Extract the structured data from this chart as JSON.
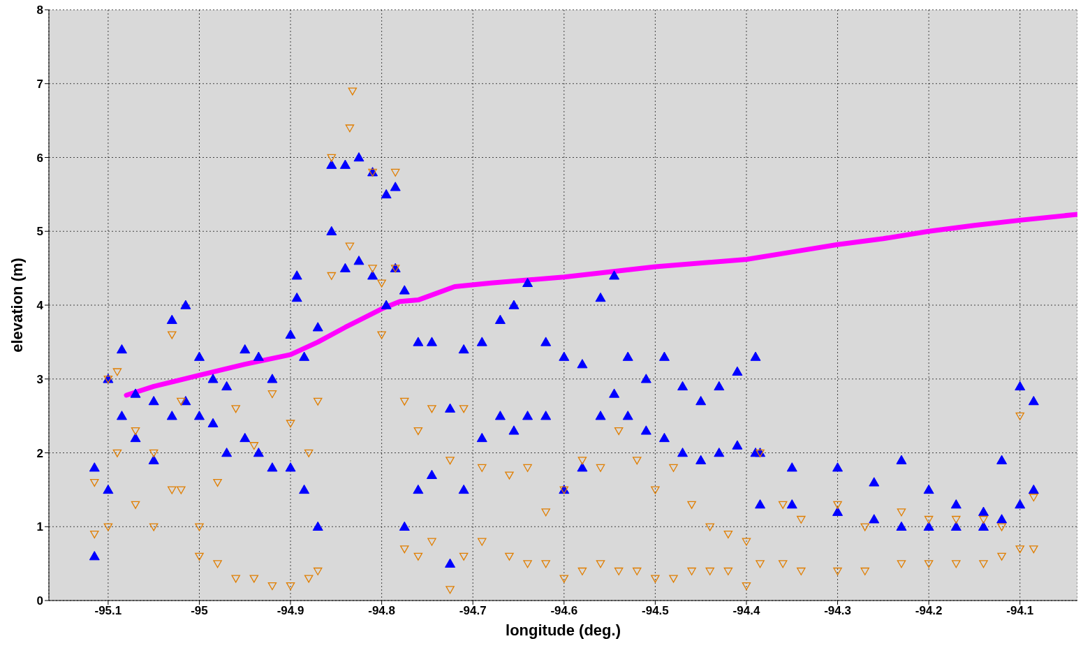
{
  "chart_data": {
    "type": "scatter",
    "xlabel": "longitude (deg.)",
    "ylabel": "elevation (m)",
    "xlim": [
      -95.165,
      -94.037
    ],
    "ylim": [
      0,
      8
    ],
    "xticks": [
      -95.1,
      -95,
      -94.9,
      -94.8,
      -94.7,
      -94.6,
      -94.5,
      -94.4,
      -94.3,
      -94.2,
      -94.1
    ],
    "yticks": [
      0,
      1,
      2,
      3,
      4,
      5,
      6,
      7,
      8
    ],
    "grid": true,
    "legend": false,
    "series": [
      {
        "marker": "triangle",
        "color": "#0000ff",
        "x": [
          -95.115,
          -95.115,
          -95.1,
          -95.1,
          -95.085,
          -95.085,
          -95.07,
          -95.07,
          -95.05,
          -95.05,
          -95.03,
          -95.03,
          -95.015,
          -95.015,
          -95.0,
          -95.0,
          -94.985,
          -94.985,
          -94.97,
          -94.97,
          -94.95,
          -94.95,
          -94.935,
          -94.935,
          -94.92,
          -94.92,
          -94.9,
          -94.9,
          -94.893,
          -94.893,
          -94.885,
          -94.885,
          -94.87,
          -94.87,
          -94.855,
          -94.855,
          -94.84,
          -94.84,
          -94.825,
          -94.825,
          -94.81,
          -94.81,
          -94.795,
          -94.795,
          -94.785,
          -94.785,
          -94.775,
          -94.775,
          -94.76,
          -94.76,
          -94.745,
          -94.745,
          -94.725,
          -94.725,
          -94.71,
          -94.71,
          -94.69,
          -94.69,
          -94.67,
          -94.67,
          -94.655,
          -94.655,
          -94.64,
          -94.64,
          -94.62,
          -94.62,
          -94.6,
          -94.6,
          -94.58,
          -94.58,
          -94.56,
          -94.56,
          -94.545,
          -94.545,
          -94.53,
          -94.53,
          -94.51,
          -94.51,
          -94.49,
          -94.49,
          -94.47,
          -94.47,
          -94.45,
          -94.45,
          -94.43,
          -94.43,
          -94.41,
          -94.41,
          -94.39,
          -94.39,
          -94.385,
          -94.385,
          -94.35,
          -94.35,
          -94.3,
          -94.3,
          -94.26,
          -94.26,
          -94.23,
          -94.23,
          -94.2,
          -94.2,
          -94.17,
          -94.17,
          -94.14,
          -94.14,
          -94.12,
          -94.12,
          -94.1,
          -94.1,
          -94.085,
          -94.085
        ],
        "values": [
          0.6,
          1.8,
          1.5,
          3.0,
          2.5,
          3.4,
          2.2,
          2.8,
          1.9,
          2.7,
          2.5,
          3.8,
          2.7,
          4.0,
          2.5,
          3.3,
          2.4,
          3.0,
          2.0,
          2.9,
          2.2,
          3.4,
          2.0,
          3.3,
          1.8,
          3.0,
          1.8,
          3.6,
          4.1,
          4.4,
          1.5,
          3.3,
          1.0,
          3.7,
          5.0,
          5.9,
          4.5,
          5.9,
          4.6,
          6.0,
          4.4,
          5.8,
          4.0,
          5.5,
          4.5,
          5.6,
          1.0,
          4.2,
          1.5,
          3.5,
          1.7,
          3.5,
          0.5,
          2.6,
          1.5,
          3.4,
          2.2,
          3.5,
          2.5,
          3.8,
          2.3,
          4.0,
          2.5,
          4.3,
          2.5,
          3.5,
          1.5,
          3.3,
          1.8,
          3.2,
          2.5,
          4.1,
          2.8,
          4.4,
          2.5,
          3.3,
          2.3,
          3.0,
          2.2,
          3.3,
          2.0,
          2.9,
          1.9,
          2.7,
          2.0,
          2.9,
          2.1,
          3.1,
          2.0,
          3.3,
          1.3,
          2.0,
          1.3,
          1.8,
          1.2,
          1.8,
          1.1,
          1.6,
          1.0,
          1.9,
          1.0,
          1.5,
          1.0,
          1.3,
          1.0,
          1.2,
          1.1,
          1.9,
          1.3,
          2.9,
          1.5,
          2.7
        ]
      },
      {
        "marker": "triangle",
        "color": "#e07e00",
        "x": [
          -95.115,
          -95.115,
          -95.1,
          -95.1,
          -95.09,
          -95.09,
          -95.07,
          -95.07,
          -95.05,
          -95.05,
          -95.03,
          -95.03,
          -95.02,
          -95.02,
          -95.0,
          -95.0,
          -94.98,
          -94.98,
          -94.96,
          -94.96,
          -94.94,
          -94.94,
          -94.92,
          -94.92,
          -94.9,
          -94.9,
          -94.88,
          -94.88,
          -94.87,
          -94.87,
          -94.855,
          -94.855,
          -94.835,
          -94.835,
          -94.832,
          -94.81,
          -94.81,
          -94.8,
          -94.8,
          -94.785,
          -94.785,
          -94.775,
          -94.775,
          -94.76,
          -94.76,
          -94.745,
          -94.745,
          -94.725,
          -94.725,
          -94.71,
          -94.71,
          -94.69,
          -94.69,
          -94.66,
          -94.66,
          -94.64,
          -94.64,
          -94.62,
          -94.62,
          -94.6,
          -94.6,
          -94.58,
          -94.58,
          -94.56,
          -94.56,
          -94.54,
          -94.54,
          -94.52,
          -94.52,
          -94.5,
          -94.5,
          -94.48,
          -94.48,
          -94.46,
          -94.46,
          -94.44,
          -94.44,
          -94.42,
          -94.42,
          -94.4,
          -94.4,
          -94.385,
          -94.385,
          -94.36,
          -94.36,
          -94.34,
          -94.34,
          -94.3,
          -94.3,
          -94.27,
          -94.27,
          -94.23,
          -94.23,
          -94.2,
          -94.2,
          -94.17,
          -94.17,
          -94.14,
          -94.14,
          -94.12,
          -94.12,
          -94.1,
          -94.1,
          -94.085,
          -94.085
        ],
        "values": [
          0.9,
          1.6,
          1.0,
          3.0,
          2.0,
          3.1,
          1.3,
          2.3,
          1.0,
          2.0,
          1.5,
          3.6,
          1.5,
          2.7,
          0.6,
          1.0,
          0.5,
          1.6,
          0.3,
          2.6,
          0.3,
          2.1,
          0.2,
          2.8,
          0.2,
          2.4,
          0.3,
          2.0,
          0.4,
          2.7,
          4.4,
          6.0,
          4.8,
          6.4,
          6.9,
          4.5,
          5.8,
          3.6,
          4.3,
          4.5,
          5.8,
          0.7,
          2.7,
          0.6,
          2.3,
          0.8,
          2.6,
          0.15,
          1.9,
          0.6,
          2.6,
          0.8,
          1.8,
          0.6,
          1.7,
          0.5,
          1.8,
          0.5,
          1.2,
          0.3,
          1.5,
          0.4,
          1.9,
          0.5,
          1.8,
          0.4,
          2.3,
          0.4,
          1.9,
          0.3,
          1.5,
          0.3,
          1.8,
          0.4,
          1.3,
          0.4,
          1.0,
          0.4,
          0.9,
          0.2,
          0.8,
          0.5,
          2.0,
          0.5,
          1.3,
          0.4,
          1.1,
          0.4,
          1.3,
          0.4,
          1.0,
          0.5,
          1.2,
          0.5,
          1.1,
          0.5,
          1.1,
          0.5,
          1.1,
          0.6,
          1.0,
          0.7,
          2.5,
          0.7,
          1.4
        ]
      },
      {
        "type": "line",
        "color": "#ff00ff",
        "x": [
          -95.08,
          -95.05,
          -95.0,
          -94.95,
          -94.9,
          -94.87,
          -94.84,
          -94.8,
          -94.78,
          -94.76,
          -94.72,
          -94.68,
          -94.6,
          -94.5,
          -94.4,
          -94.35,
          -94.3,
          -94.25,
          -94.2,
          -94.15,
          -94.1,
          -94.037
        ],
        "values": [
          2.78,
          2.9,
          3.05,
          3.2,
          3.33,
          3.5,
          3.7,
          3.95,
          4.05,
          4.07,
          4.25,
          4.3,
          4.38,
          4.52,
          4.62,
          4.72,
          4.82,
          4.9,
          5.0,
          5.08,
          5.15,
          5.23
        ]
      }
    ]
  }
}
